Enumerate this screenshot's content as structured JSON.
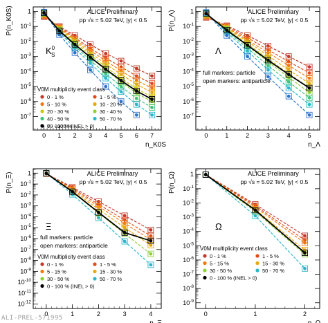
{
  "colors": {
    "0-1": "#c0392b",
    "1-5": "#e04b1a",
    "5-10": "#f07a10",
    "10-20": "#e6a90f",
    "20-30": "#c9c815",
    "30-40": "#8fcf3a",
    "40-50": "#3fc27a",
    "50-70": "#2ab7c9",
    "70-100": "#2c74c9",
    "0-100": "#000000"
  },
  "footer": "ALI-PREL-571995",
  "chart_data": [
    {
      "type": "line",
      "particle": "K0S",
      "panel_label": "K",
      "panel_label_sup": "0",
      "panel_label_sub": "S",
      "header": "ALICE Preliminary",
      "subheader": "pp √s = 5.02 TeV, |y| < 0.5",
      "ylabel": "P(n_K0S)",
      "xlabel": "n_K0S",
      "x_ticks": [
        "0",
        "1",
        "2",
        "3",
        "4",
        "5",
        "6",
        "7"
      ],
      "y_ticks": [
        "10^-7",
        "10^-6",
        "10^-5",
        "10^-4",
        "10^-3",
        "10^-2",
        "10^-1",
        "1"
      ],
      "xlim": [
        -0.7,
        7.6
      ],
      "ylim_exp": [
        -7.9,
        0.3
      ],
      "y_scale": "log",
      "legend_title": "V0M multiplicity event class",
      "legend_entries": [
        {
          "key": "0-1",
          "label": "0 - 1 %"
        },
        {
          "key": "1-5",
          "label": "1 - 5 %"
        },
        {
          "key": "5-10",
          "label": "5 - 10 %"
        },
        {
          "key": "10-20",
          "label": "10 - 20 %"
        },
        {
          "key": "20-30",
          "label": "20 - 30 %"
        },
        {
          "key": "30-40",
          "label": "30 - 40 %"
        },
        {
          "key": "40-50",
          "label": "40 - 50 %"
        },
        {
          "key": "50-70",
          "label": "50 - 70 %"
        },
        {
          "key": "70-100",
          "label": "70 - 100 %"
        },
        {
          "key": "0-100",
          "label": "0 - 100 % (INEL > 0)"
        }
      ],
      "series": [
        {
          "key": "0-1",
          "x": [
            0,
            1,
            2,
            3,
            4,
            5,
            6,
            7
          ],
          "y_exp": [
            -0.35,
            -1.0,
            -1.6,
            -2.2,
            -2.8,
            -3.3,
            -3.8,
            -4.3
          ]
        },
        {
          "key": "1-5",
          "x": [
            0,
            1,
            2,
            3,
            4,
            5,
            6,
            7
          ],
          "y_exp": [
            -0.3,
            -1.05,
            -1.75,
            -2.45,
            -3.1,
            -3.7,
            -4.3,
            -4.8
          ]
        },
        {
          "key": "5-10",
          "x": [
            0,
            1,
            2,
            3,
            4,
            5,
            6,
            7
          ],
          "y_exp": [
            -0.25,
            -1.1,
            -1.85,
            -2.6,
            -3.3,
            -3.95,
            -4.6,
            -5.1
          ]
        },
        {
          "key": "10-20",
          "x": [
            0,
            1,
            2,
            3,
            4,
            5,
            6,
            7
          ],
          "y_exp": [
            -0.2,
            -1.15,
            -1.95,
            -2.75,
            -3.5,
            -4.2,
            -4.85,
            -5.4
          ]
        },
        {
          "key": "20-30",
          "x": [
            0,
            1,
            2,
            3,
            4,
            5,
            6,
            7
          ],
          "y_exp": [
            -0.15,
            -1.2,
            -2.05,
            -2.9,
            -3.7,
            -4.45,
            -5.15,
            -5.7
          ]
        },
        {
          "key": "30-40",
          "x": [
            0,
            1,
            2,
            3,
            4,
            5,
            6,
            7
          ],
          "y_exp": [
            -0.12,
            -1.25,
            -2.15,
            -3.05,
            -3.9,
            -4.7,
            -5.45,
            -6.0
          ]
        },
        {
          "key": "40-50",
          "x": [
            0,
            1,
            2,
            3,
            4,
            5,
            6,
            7
          ],
          "y_exp": [
            -0.1,
            -1.3,
            -2.3,
            -3.25,
            -4.15,
            -5.0,
            -5.8,
            -6.4
          ]
        },
        {
          "key": "50-70",
          "x": [
            0,
            1,
            2,
            3,
            4,
            5,
            6,
            7
          ],
          "y_exp": [
            -0.08,
            -1.4,
            -2.45,
            -3.45,
            -4.45,
            -5.35,
            -6.2,
            -6.9
          ]
        },
        {
          "key": "70-100",
          "x": [
            0,
            1,
            2,
            3,
            4,
            5,
            6
          ],
          "y_exp": [
            -0.05,
            -1.55,
            -2.75,
            -3.9,
            -5.0,
            -6.0,
            -6.9
          ]
        },
        {
          "key": "0-100",
          "x": [
            0,
            1,
            2,
            3,
            4,
            5,
            6,
            7
          ],
          "y_exp": [
            -0.1,
            -1.3,
            -2.2,
            -3.05,
            -3.85,
            -4.6,
            -5.3,
            -5.85
          ]
        }
      ]
    },
    {
      "type": "line",
      "particle": "Lambda",
      "panel_label": "Λ",
      "header": "ALICE Preliminary",
      "subheader": "pp √s = 5.02 TeV, |y| < 0.5",
      "ylabel": "P(n_Λ)",
      "xlabel": "n_Λ",
      "x_ticks": [
        "0",
        "1",
        "2",
        "3",
        "4",
        "5"
      ],
      "y_ticks": [
        "10^-7",
        "10^-6",
        "10^-5",
        "10^-4",
        "10^-3",
        "10^-2",
        "10^-1",
        "1"
      ],
      "xlim": [
        -0.5,
        5.5
      ],
      "ylim_exp": [
        -7.9,
        0.3
      ],
      "y_scale": "log",
      "notes": [
        "full markers: particle",
        "open markers: antiparticle"
      ],
      "series": [
        {
          "key": "0-1",
          "x": [
            0,
            1,
            2,
            3,
            4,
            5
          ],
          "y_exp": [
            -0.4,
            -0.95,
            -1.6,
            -2.3,
            -3.0,
            -3.7
          ]
        },
        {
          "key": "1-5",
          "x": [
            0,
            1,
            2,
            3,
            4,
            5
          ],
          "y_exp": [
            -0.35,
            -1.0,
            -1.75,
            -2.55,
            -3.35,
            -4.1
          ]
        },
        {
          "key": "5-10",
          "x": [
            0,
            1,
            2,
            3,
            4,
            5
          ],
          "y_exp": [
            -0.3,
            -1.05,
            -1.9,
            -2.75,
            -3.6,
            -4.45
          ]
        },
        {
          "key": "10-20",
          "x": [
            0,
            1,
            2,
            3,
            4,
            5
          ],
          "y_exp": [
            -0.25,
            -1.1,
            -2.0,
            -2.95,
            -3.9,
            -4.8
          ]
        },
        {
          "key": "20-30",
          "x": [
            0,
            1,
            2,
            3,
            4,
            5
          ],
          "y_exp": [
            -0.2,
            -1.15,
            -2.15,
            -3.15,
            -4.15,
            -5.1
          ]
        },
        {
          "key": "30-40",
          "x": [
            0,
            1,
            2,
            3,
            4,
            5
          ],
          "y_exp": [
            -0.15,
            -1.2,
            -2.3,
            -3.35,
            -4.4,
            -5.4
          ]
        },
        {
          "key": "40-50",
          "x": [
            0,
            1,
            2,
            3,
            4,
            5
          ],
          "y_exp": [
            -0.12,
            -1.3,
            -2.45,
            -3.6,
            -4.7,
            -5.75
          ]
        },
        {
          "key": "50-70",
          "x": [
            0,
            1,
            2,
            3,
            4,
            5
          ],
          "y_exp": [
            -0.1,
            -1.4,
            -2.65,
            -3.9,
            -5.1,
            -6.2
          ]
        },
        {
          "key": "70-100",
          "x": [
            0,
            1,
            2,
            3,
            4,
            5
          ],
          "y_exp": [
            -0.06,
            -1.6,
            -3.0,
            -4.35,
            -5.65,
            -6.9
          ]
        },
        {
          "key": "0-100",
          "x": [
            0,
            1,
            2,
            3,
            4,
            5
          ],
          "y_exp": [
            -0.15,
            -1.25,
            -2.25,
            -3.25,
            -4.2,
            -5.1
          ]
        }
      ]
    },
    {
      "type": "line",
      "particle": "Xi",
      "panel_label": "Ξ",
      "header": "ALICE Preliminary",
      "subheader": "pp √s = 5.02 TeV, |y| < 0.5",
      "ylabel": "P(n_Ξ)",
      "xlabel": "n_Ξ",
      "x_ticks": [
        "0",
        "1",
        "2",
        "3",
        "4"
      ],
      "y_ticks": [
        "10^-12",
        "10^-11",
        "10^-10",
        "10^-9",
        "10^-8",
        "10^-7",
        "10^-6",
        "10^-5",
        "10^-4",
        "10^-3",
        "10^-2",
        "10^-1",
        "1"
      ],
      "xlim": [
        -0.5,
        4.4
      ],
      "ylim_exp": [
        -12.4,
        0.4
      ],
      "y_scale": "log",
      "notes": [
        "full markers: particle",
        "open markers: antiparticle"
      ],
      "legend_title": "V0M multiplicity event class",
      "legend_entries": [
        {
          "key": "0-1",
          "label": "0 - 1 %"
        },
        {
          "key": "1-5",
          "label": "1 - 5 %"
        },
        {
          "key": "5-10",
          "label": "5 - 15 %"
        },
        {
          "key": "10-20",
          "label": "15 - 30 %"
        },
        {
          "key": "30-40",
          "label": "30 - 50 %"
        },
        {
          "key": "50-70",
          "label": "50 - 70 %"
        },
        {
          "key": "0-100",
          "label": "0 - 100 % (INEL > 0)"
        }
      ],
      "series": [
        {
          "key": "0-1",
          "x": [
            0,
            1,
            2,
            3,
            4
          ],
          "y_exp": [
            -0.05,
            -1.3,
            -2.6,
            -3.9,
            -5.2
          ]
        },
        {
          "key": "1-5",
          "x": [
            0,
            1,
            2,
            3,
            4
          ],
          "y_exp": [
            -0.04,
            -1.4,
            -2.85,
            -4.3,
            -5.75
          ]
        },
        {
          "key": "5-10",
          "x": [
            0,
            1,
            2,
            3,
            4
          ],
          "y_exp": [
            -0.03,
            -1.5,
            -3.05,
            -4.6,
            -6.1
          ]
        },
        {
          "key": "10-20",
          "x": [
            0,
            1,
            2,
            3,
            4
          ],
          "y_exp": [
            -0.02,
            -1.6,
            -3.3,
            -5.0,
            -6.6
          ]
        },
        {
          "key": "30-40",
          "x": [
            0,
            1,
            2,
            3,
            4
          ],
          "y_exp": [
            -0.01,
            -1.75,
            -3.65,
            -5.55,
            -7.4
          ]
        },
        {
          "key": "50-70",
          "x": [
            0,
            1,
            2,
            3,
            4
          ],
          "y_exp": [
            -0.01,
            -1.95,
            -4.1,
            -6.25,
            -8.4
          ]
        },
        {
          "key": "0-100",
          "x": [
            0,
            1,
            2,
            3,
            4
          ],
          "y_exp": [
            -0.02,
            -1.7,
            -3.6,
            -5.45,
            -6.2
          ]
        }
      ]
    },
    {
      "type": "line",
      "particle": "Omega",
      "panel_label": "Ω",
      "header": "ALICE Preliminary",
      "subheader": "pp √s = 5.02 TeV, |y| < 0.5",
      "ylabel": "P(n_Ω)",
      "xlabel": "n_Ω",
      "x_ticks": [
        "0",
        "1",
        "2"
      ],
      "y_ticks": [
        "10^-9",
        "10^-8",
        "10^-7",
        "10^-6",
        "10^-5",
        "10^-4",
        "10^-3",
        "10^-2",
        "10^-1",
        "1"
      ],
      "xlim": [
        -0.2,
        2.3
      ],
      "ylim_exp": [
        -9.4,
        0.4
      ],
      "y_scale": "log",
      "legend_title": "V0M multiplicity event class",
      "legend_entries": [
        {
          "key": "0-1",
          "label": "0 - 1 %"
        },
        {
          "key": "1-5",
          "label": "1 - 5 %"
        },
        {
          "key": "5-10",
          "label": "5 - 15 %"
        },
        {
          "key": "10-20",
          "label": "15 - 30 %"
        },
        {
          "key": "30-40",
          "label": "30 - 50 %"
        },
        {
          "key": "50-70",
          "label": "50 - 70 %"
        },
        {
          "key": "0-100",
          "label": "0 - 100 % (INEL > 0)"
        }
      ],
      "series": [
        {
          "key": "0-1",
          "x": [
            0,
            1,
            2
          ],
          "y_exp": [
            -0.01,
            -2.1,
            -4.3
          ]
        },
        {
          "key": "1-5",
          "x": [
            0,
            1,
            2
          ],
          "y_exp": [
            -0.01,
            -2.2,
            -4.6
          ]
        },
        {
          "key": "5-10",
          "x": [
            0,
            1,
            2
          ],
          "y_exp": [
            -0.01,
            -2.3,
            -4.8
          ]
        },
        {
          "key": "10-20",
          "x": [
            0,
            1,
            2
          ],
          "y_exp": [
            -0.01,
            -2.45,
            -5.3
          ]
        },
        {
          "key": "30-40",
          "x": [
            0,
            1,
            2
          ],
          "y_exp": [
            -0.01,
            -2.6,
            -5.6
          ]
        },
        {
          "key": "50-70",
          "x": [
            0,
            1,
            2
          ],
          "y_exp": [
            -0.01,
            -2.9,
            -6.6
          ]
        },
        {
          "key": "0-100",
          "x": [
            0,
            1,
            2
          ],
          "y_exp": [
            -0.01,
            -2.5,
            -5.5
          ]
        }
      ]
    }
  ]
}
